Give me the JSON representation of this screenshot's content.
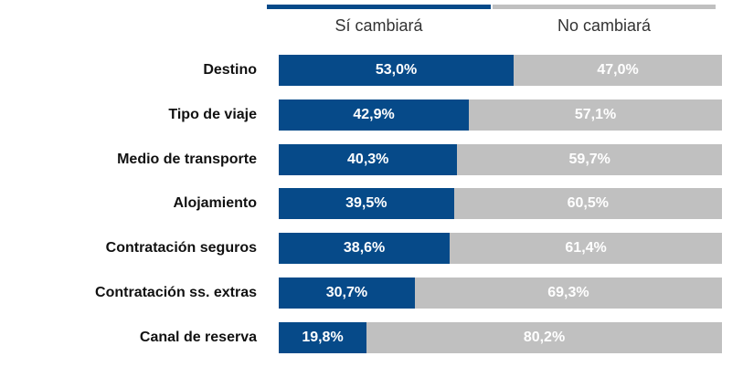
{
  "colors": {
    "si": "#064a89",
    "no": "#c0c0c0",
    "label_on_bar": "#ffffff"
  },
  "chart_data": {
    "type": "bar",
    "orientation": "horizontal",
    "stacked": true,
    "legend_position": "top",
    "xlim": [
      0,
      100
    ],
    "categories": [
      "Destino",
      "Tipo de viaje",
      "Medio de transporte",
      "Alojamiento",
      "Contratación seguros",
      "Contratación ss. extras",
      "Canal de reserva"
    ],
    "series": [
      {
        "name": "Sí cambiará",
        "values": [
          53.0,
          42.9,
          40.3,
          39.5,
          38.6,
          30.7,
          19.8
        ],
        "labels": [
          "53,0%",
          "42,9%",
          "40,3%",
          "39,5%",
          "38,6%",
          "30,7%",
          "19,8%"
        ]
      },
      {
        "name": "No cambiará",
        "values": [
          47.0,
          57.1,
          59.7,
          60.5,
          61.4,
          69.3,
          80.2
        ],
        "labels": [
          "47,0%",
          "57,1%",
          "59,7%",
          "60,5%",
          "61,4%",
          "69,3%",
          "80,2%"
        ]
      }
    ]
  }
}
